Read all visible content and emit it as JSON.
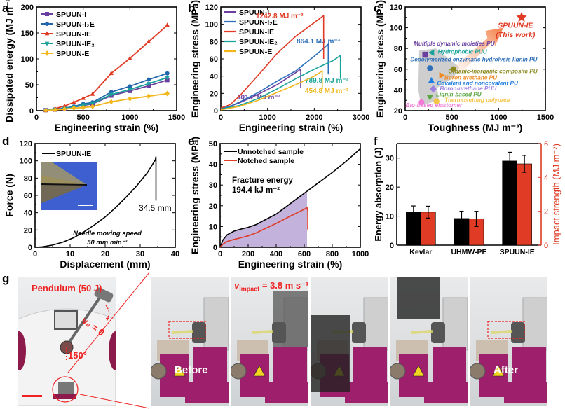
{
  "panel_labels": {
    "a": "a",
    "b": "b",
    "c": "c",
    "d": "d",
    "e": "e",
    "f": "f",
    "g": "g"
  },
  "chart_data": [
    {
      "id": "a",
      "type": "line",
      "title": "",
      "xlabel": "Engineering strain (%)",
      "ylabel": "Dissipated energy (MJ m⁻³)",
      "xlim": [
        0,
        1500
      ],
      "ylim": [
        0,
        200
      ],
      "xticks": [
        0,
        500,
        1000,
        1500
      ],
      "yticks": [
        0,
        50,
        100,
        150,
        200
      ],
      "legend_position": "top-left",
      "x": [
        100,
        200,
        300,
        400,
        500,
        600,
        800,
        1000,
        1200,
        1400
      ],
      "series": [
        {
          "name": "SPUUN-I",
          "marker": "square",
          "color": "#6a3fa0",
          "values": [
            1,
            2,
            4,
            7,
            10,
            13,
            29,
            38,
            48,
            59
          ]
        },
        {
          "name": "SPUUN-I₂E",
          "marker": "circle",
          "color": "#2166ac",
          "values": [
            1,
            2.5,
            5,
            8,
            13,
            16,
            36,
            47,
            60,
            72
          ]
        },
        {
          "name": "SPUUN-IE",
          "marker": "triangle-up",
          "color": "#e03b24",
          "values": [
            1,
            4,
            9,
            16,
            24,
            32,
            72,
            101,
            133,
            165
          ]
        },
        {
          "name": "SPUUN-IE₂",
          "marker": "triangle-down",
          "color": "#1aa39a",
          "values": [
            1,
            2,
            4,
            7,
            11,
            14,
            31,
            41,
            52,
            64
          ]
        },
        {
          "name": "SPUUN-E",
          "marker": "diamond",
          "color": "#f2b71d",
          "values": [
            0.5,
            1.5,
            3,
            5,
            6,
            8,
            17,
            23,
            28,
            33
          ]
        }
      ]
    },
    {
      "id": "b",
      "type": "line",
      "xlabel": "Engineering strain (%)",
      "ylabel": "Engineering stress (MPa)",
      "xlim": [
        0,
        3000
      ],
      "ylim": [
        0,
        120
      ],
      "xticks": [
        0,
        1000,
        2000,
        3000
      ],
      "yticks": [
        0,
        20,
        40,
        60,
        80,
        100,
        120
      ],
      "legend_position": "top-left",
      "series": [
        {
          "name": "SPUUN-I",
          "color": "#6a3fa0",
          "x": [
            0,
            200,
            400,
            800,
            1200,
            1600,
            1710,
            1710
          ],
          "values": [
            2,
            5,
            9,
            19,
            30,
            44,
            48,
            26
          ],
          "annotation": "401.2 MJ m⁻³"
        },
        {
          "name": "SPUUN-I₂E",
          "color": "#2e6fba",
          "x": [
            0,
            200,
            400,
            800,
            1200,
            1600,
            2000,
            2300,
            2300
          ],
          "values": [
            2,
            5,
            10,
            21,
            34,
            46,
            63,
            77,
            42
          ],
          "annotation": "864.1 MJ m⁻³"
        },
        {
          "name": "SPUUN-IE",
          "color": "#e03b24",
          "x": [
            0,
            200,
            400,
            800,
            1200,
            1600,
            2000,
            2200,
            2200
          ],
          "values": [
            3,
            7,
            17,
            41,
            66,
            86,
            102,
            110,
            60
          ],
          "annotation": "1242.8 MJ m⁻³"
        },
        {
          "name": "SPUUN-IE₂",
          "color": "#1aa39a",
          "x": [
            0,
            200,
            400,
            800,
            1200,
            1600,
            2000,
            2400,
            2560,
            2560
          ],
          "values": [
            2,
            4,
            6,
            14,
            25,
            37,
            48,
            58,
            64,
            37
          ],
          "annotation": "789.8 MJ m⁻³"
        },
        {
          "name": "SPUUN-E",
          "color": "#f2b71d",
          "x": [
            0,
            200,
            400,
            800,
            1200,
            1600,
            2000,
            2170,
            2170
          ],
          "values": [
            1,
            3,
            5,
            12,
            21,
            30,
            40,
            46,
            25
          ],
          "annotation": "454.8 MJ m⁻³"
        }
      ]
    },
    {
      "id": "c",
      "type": "scatter",
      "xlabel": "Toughness (MJ m⁻³)",
      "ylabel": "Engineering stress (MPa)",
      "xlim": [
        0,
        1500
      ],
      "ylim": [
        20,
        120
      ],
      "xticks": [
        0,
        500,
        1000,
        1500
      ],
      "yticks": [
        20,
        40,
        60,
        80,
        100,
        120
      ],
      "points": [
        {
          "label": "SPUUN-IE (This work)",
          "x": 1245,
          "y": 110,
          "marker": "star",
          "color": "#e03b24"
        },
        {
          "label": "Multiple dynamic moieties PU",
          "x": 215,
          "y": 74,
          "marker": "square",
          "color": "#6a3fa0"
        },
        {
          "label": "Hydrophobic PUU",
          "x": 285,
          "y": 76,
          "marker": "triangle-left",
          "color": "#1aa39a"
        },
        {
          "label": "Depolymerized enzymatic hydrolysis lignin PU",
          "x": 265,
          "y": 61,
          "marker": "circle",
          "color": "#2e6fba"
        },
        {
          "label": "Organic-inorganic composite PU",
          "x": 515,
          "y": 60,
          "marker": "circle",
          "color": "#8a8a20"
        },
        {
          "label": "Boron-urethane PU",
          "x": 390,
          "y": 54,
          "marker": "triangle-right",
          "color": "#f08a24"
        },
        {
          "label": "Covalent and noncovalent PU",
          "x": 280,
          "y": 49,
          "marker": "triangle-up",
          "color": "#1f7fe0"
        },
        {
          "label": "Boron-urethane PUU",
          "x": 300,
          "y": 41,
          "marker": "diamond",
          "color": "#9b7fe0"
        },
        {
          "label": "Lignin-based PU",
          "x": 265,
          "y": 33,
          "marker": "triangle-down",
          "color": "#5aa544"
        },
        {
          "label": "Thermosetting polyurea",
          "x": 335,
          "y": 29,
          "marker": "circle",
          "color": "#f6c445"
        },
        {
          "label": "Bio-based elastomer",
          "x": 175,
          "y": 28,
          "marker": "circle",
          "color": "#f07ad8"
        }
      ]
    },
    {
      "id": "d",
      "type": "line",
      "xlabel": "Displacement (mm)",
      "ylabel": "Force (N)",
      "xlim": [
        0,
        40
      ],
      "ylim": [
        0,
        120
      ],
      "xticks": [
        0,
        10,
        20,
        30,
        40
      ],
      "yticks": [
        0,
        20,
        40,
        60,
        80,
        100,
        120
      ],
      "series": [
        {
          "name": "SPUUN-IE",
          "color": "#000000",
          "x": [
            0,
            2,
            5,
            8,
            11,
            14,
            17,
            20,
            23,
            26,
            29,
            32,
            34.3,
            34.5,
            34.5
          ],
          "values": [
            0,
            0.5,
            2.5,
            6,
            11,
            18,
            26,
            35,
            46,
            58,
            71,
            86,
            101,
            105,
            54
          ]
        }
      ],
      "annotations": [
        "34.5 mm",
        "Needle moving speed",
        "50 mm min⁻¹"
      ]
    },
    {
      "id": "e",
      "type": "line",
      "xlabel": "Engineering strain (%)",
      "ylabel": "Engineering stress (MPa)",
      "xlim": [
        0,
        1000
      ],
      "ylim": [
        0,
        50
      ],
      "xticks": [
        0,
        200,
        400,
        600,
        800,
        1000
      ],
      "yticks": [
        0,
        10,
        20,
        30,
        40,
        50
      ],
      "series": [
        {
          "name": "Unnotched sample",
          "color": "#000000",
          "x": [
            0,
            20,
            50,
            100,
            150,
            200,
            260,
            300,
            400,
            500,
            600,
            700,
            800,
            900,
            1000
          ],
          "values": [
            0,
            3.5,
            6,
            7.8,
            8.8,
            9.6,
            11,
            12.5,
            16,
            21,
            26,
            31,
            36,
            41.5,
            47.5
          ]
        },
        {
          "name": "Notched sample",
          "color": "#e03b24",
          "x": [
            0,
            20,
            50,
            100,
            150,
            200,
            260,
            300,
            400,
            500,
            600,
            620,
            625,
            625
          ],
          "values": [
            0,
            1.5,
            2.8,
            3.8,
            4.6,
            5.5,
            7,
            8.3,
            11.5,
            15,
            18.3,
            19.2,
            17.5,
            8.5
          ]
        }
      ],
      "shaded_region_xmax": 620,
      "annotations": [
        "Fracture energy",
        "194.4 kJ m⁻²"
      ]
    },
    {
      "id": "f",
      "type": "bar",
      "categories": [
        "Kevlar",
        "UHMW-PE",
        "SPUUN-IE"
      ],
      "ylabel": "Energy absorption (J)",
      "ylabel_right": "Impact strength (MJ m⁻²)",
      "ylim": [
        0,
        35
      ],
      "yticks": [
        0,
        10,
        20,
        30
      ],
      "ylim_right": [
        0,
        6
      ],
      "yticks_right": [
        0,
        2,
        4,
        6
      ],
      "series": [
        {
          "name": "Energy absorption",
          "axis": "left",
          "color": "#000000",
          "values": [
            11.5,
            9.2,
            29
          ],
          "errors": [
            2.0,
            2.5,
            3.0
          ]
        },
        {
          "name": "Impact strength",
          "axis": "right",
          "color": "#e03b24",
          "values": [
            1.95,
            1.55,
            4.8
          ],
          "errors": [
            0.35,
            0.45,
            0.5
          ]
        }
      ]
    }
  ],
  "panel_g": {
    "pendulum_label": "Pendulum (50 J)",
    "v0_label": "v₀ = 0",
    "angle_label": "150°",
    "velocity_label_prefix": "v",
    "velocity_label_sub": "impact",
    "velocity_label_value": " = 3.8 m s⁻¹",
    "before_label": "Before",
    "after_label": "After"
  }
}
